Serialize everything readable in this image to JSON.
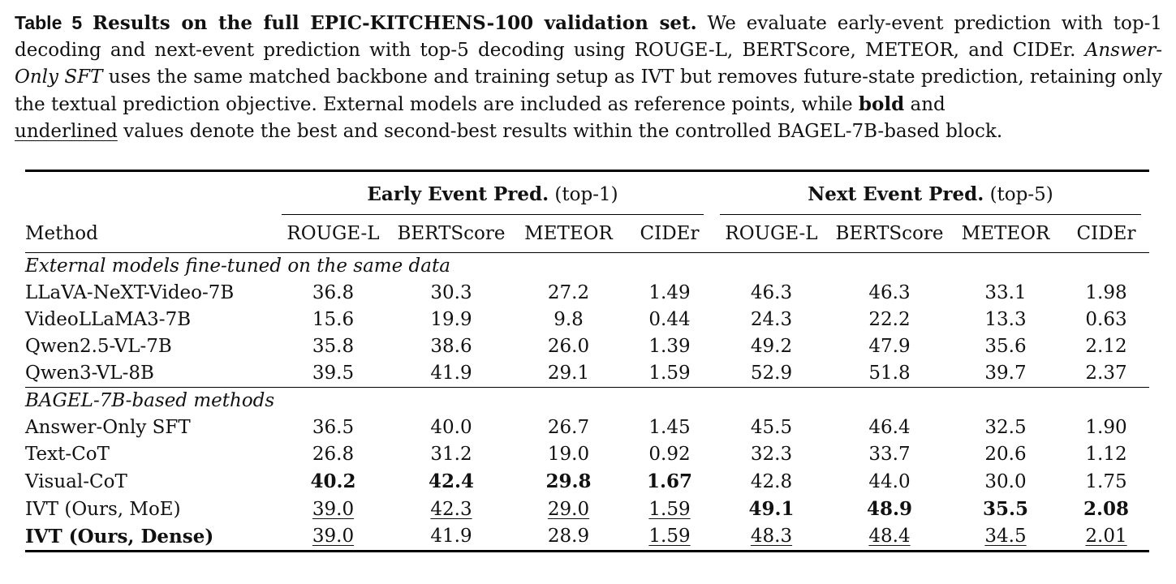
{
  "caption": {
    "label": "Table 5",
    "title": "Results on the full EPIC-KITCHENS-100 validation set.",
    "sentence1": "We evaluate early-event prediction with top-1 decoding and next-event prediction with top-5 decoding using ROUGE-L, BERTScore, METEOR, and CIDEr.",
    "answer_only_term": "Answer-Only SFT",
    "sentence2_rest": "uses the same matched backbone and training setup as IVT but removes future-state prediction, retaining only the textual prediction objective. External models are included as reference points, while",
    "bold_word": "bold",
    "and_word": "and",
    "underlined_word": "underlined",
    "sentence3_rest": "values denote the best and second-best results within the controlled BAGEL-7B-based block."
  },
  "table": {
    "method_header": "Method",
    "group1": {
      "name": "Early Event Pred.",
      "suffix": "(top-1)"
    },
    "group2": {
      "name": "Next Event Pred.",
      "suffix": "(top-5)"
    },
    "columns": [
      "ROUGE-L",
      "BERTScore",
      "METEOR",
      "CIDEr",
      "ROUGE-L",
      "BERTScore",
      "METEOR",
      "CIDEr"
    ],
    "sections": [
      {
        "title": "External models fine-tuned on the same data",
        "rows": [
          {
            "method": "LLaVA-NeXT-Video-7B",
            "bold_method": false,
            "values": [
              "36.8",
              "30.3",
              "27.2",
              "1.49",
              "46.3",
              "46.3",
              "33.1",
              "1.98"
            ],
            "marks": [
              "",
              "",
              "",
              "",
              "",
              "",
              "",
              ""
            ]
          },
          {
            "method": "VideoLLaMA3-7B",
            "bold_method": false,
            "values": [
              "15.6",
              "19.9",
              "9.8",
              "0.44",
              "24.3",
              "22.2",
              "13.3",
              "0.63"
            ],
            "marks": [
              "",
              "",
              "",
              "",
              "",
              "",
              "",
              ""
            ]
          },
          {
            "method": "Qwen2.5-VL-7B",
            "bold_method": false,
            "values": [
              "35.8",
              "38.6",
              "26.0",
              "1.39",
              "49.2",
              "47.9",
              "35.6",
              "2.12"
            ],
            "marks": [
              "",
              "",
              "",
              "",
              "",
              "",
              "",
              ""
            ]
          },
          {
            "method": "Qwen3-VL-8B",
            "bold_method": false,
            "values": [
              "39.5",
              "41.9",
              "29.1",
              "1.59",
              "52.9",
              "51.8",
              "39.7",
              "2.37"
            ],
            "marks": [
              "",
              "",
              "",
              "",
              "",
              "",
              "",
              ""
            ]
          }
        ]
      },
      {
        "title": "BAGEL-7B-based methods",
        "rows": [
          {
            "method": "Answer-Only SFT",
            "bold_method": false,
            "values": [
              "36.5",
              "40.0",
              "26.7",
              "1.45",
              "45.5",
              "46.4",
              "32.5",
              "1.90"
            ],
            "marks": [
              "",
              "",
              "",
              "",
              "",
              "",
              "",
              ""
            ]
          },
          {
            "method": "Text-CoT",
            "bold_method": false,
            "values": [
              "26.8",
              "31.2",
              "19.0",
              "0.92",
              "32.3",
              "33.7",
              "20.6",
              "1.12"
            ],
            "marks": [
              "",
              "",
              "",
              "",
              "",
              "",
              "",
              ""
            ]
          },
          {
            "method": "Visual-CoT",
            "bold_method": false,
            "values": [
              "40.2",
              "42.4",
              "29.8",
              "1.67",
              "42.8",
              "44.0",
              "30.0",
              "1.75"
            ],
            "marks": [
              "b",
              "b",
              "b",
              "b",
              "",
              "",
              "",
              ""
            ]
          },
          {
            "method": "IVT (Ours, MoE)",
            "bold_method": false,
            "values": [
              "39.0",
              "42.3",
              "29.0",
              "1.59",
              "49.1",
              "48.9",
              "35.5",
              "2.08"
            ],
            "marks": [
              "u",
              "u",
              "u",
              "u",
              "b",
              "b",
              "b",
              "b"
            ]
          },
          {
            "method": "IVT (Ours, Dense)",
            "bold_method": true,
            "values": [
              "39.0",
              "41.9",
              "28.9",
              "1.59",
              "48.3",
              "48.4",
              "34.5",
              "2.01"
            ],
            "marks": [
              "u",
              "",
              "",
              "u",
              "u",
              "u",
              "u",
              "u"
            ]
          }
        ]
      }
    ]
  }
}
